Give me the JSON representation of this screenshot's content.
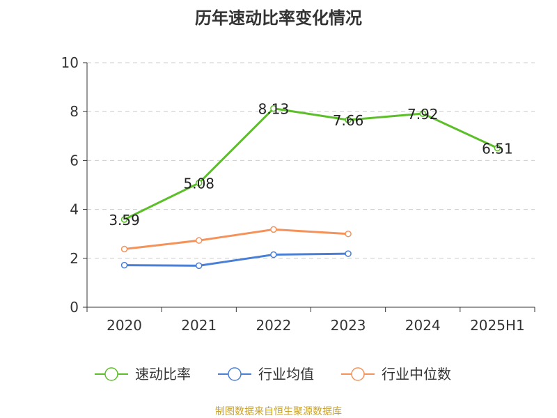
{
  "chart_data": {
    "type": "line",
    "title": "历年速动比率变化情况",
    "source": "制图数据来自恒生聚源数据库",
    "categories": [
      "2020",
      "2021",
      "2022",
      "2023",
      "2024",
      "2025H1"
    ],
    "ylim": [
      0,
      10
    ],
    "yticks": [
      0,
      2,
      4,
      6,
      8,
      10
    ],
    "grid": true,
    "legend_position": "bottom",
    "series": [
      {
        "name": "速动比率",
        "color": "#5cbf2a",
        "values": [
          3.59,
          5.08,
          8.13,
          7.66,
          7.92,
          6.51
        ],
        "show_labels": true
      },
      {
        "name": "行业均值",
        "color": "#4a7fd6",
        "values": [
          1.72,
          1.7,
          2.15,
          2.19,
          null,
          null
        ],
        "show_labels": false
      },
      {
        "name": "行业中位数",
        "color": "#f5925a",
        "values": [
          2.38,
          2.73,
          3.18,
          3.0,
          null,
          null
        ],
        "show_labels": false
      }
    ]
  }
}
